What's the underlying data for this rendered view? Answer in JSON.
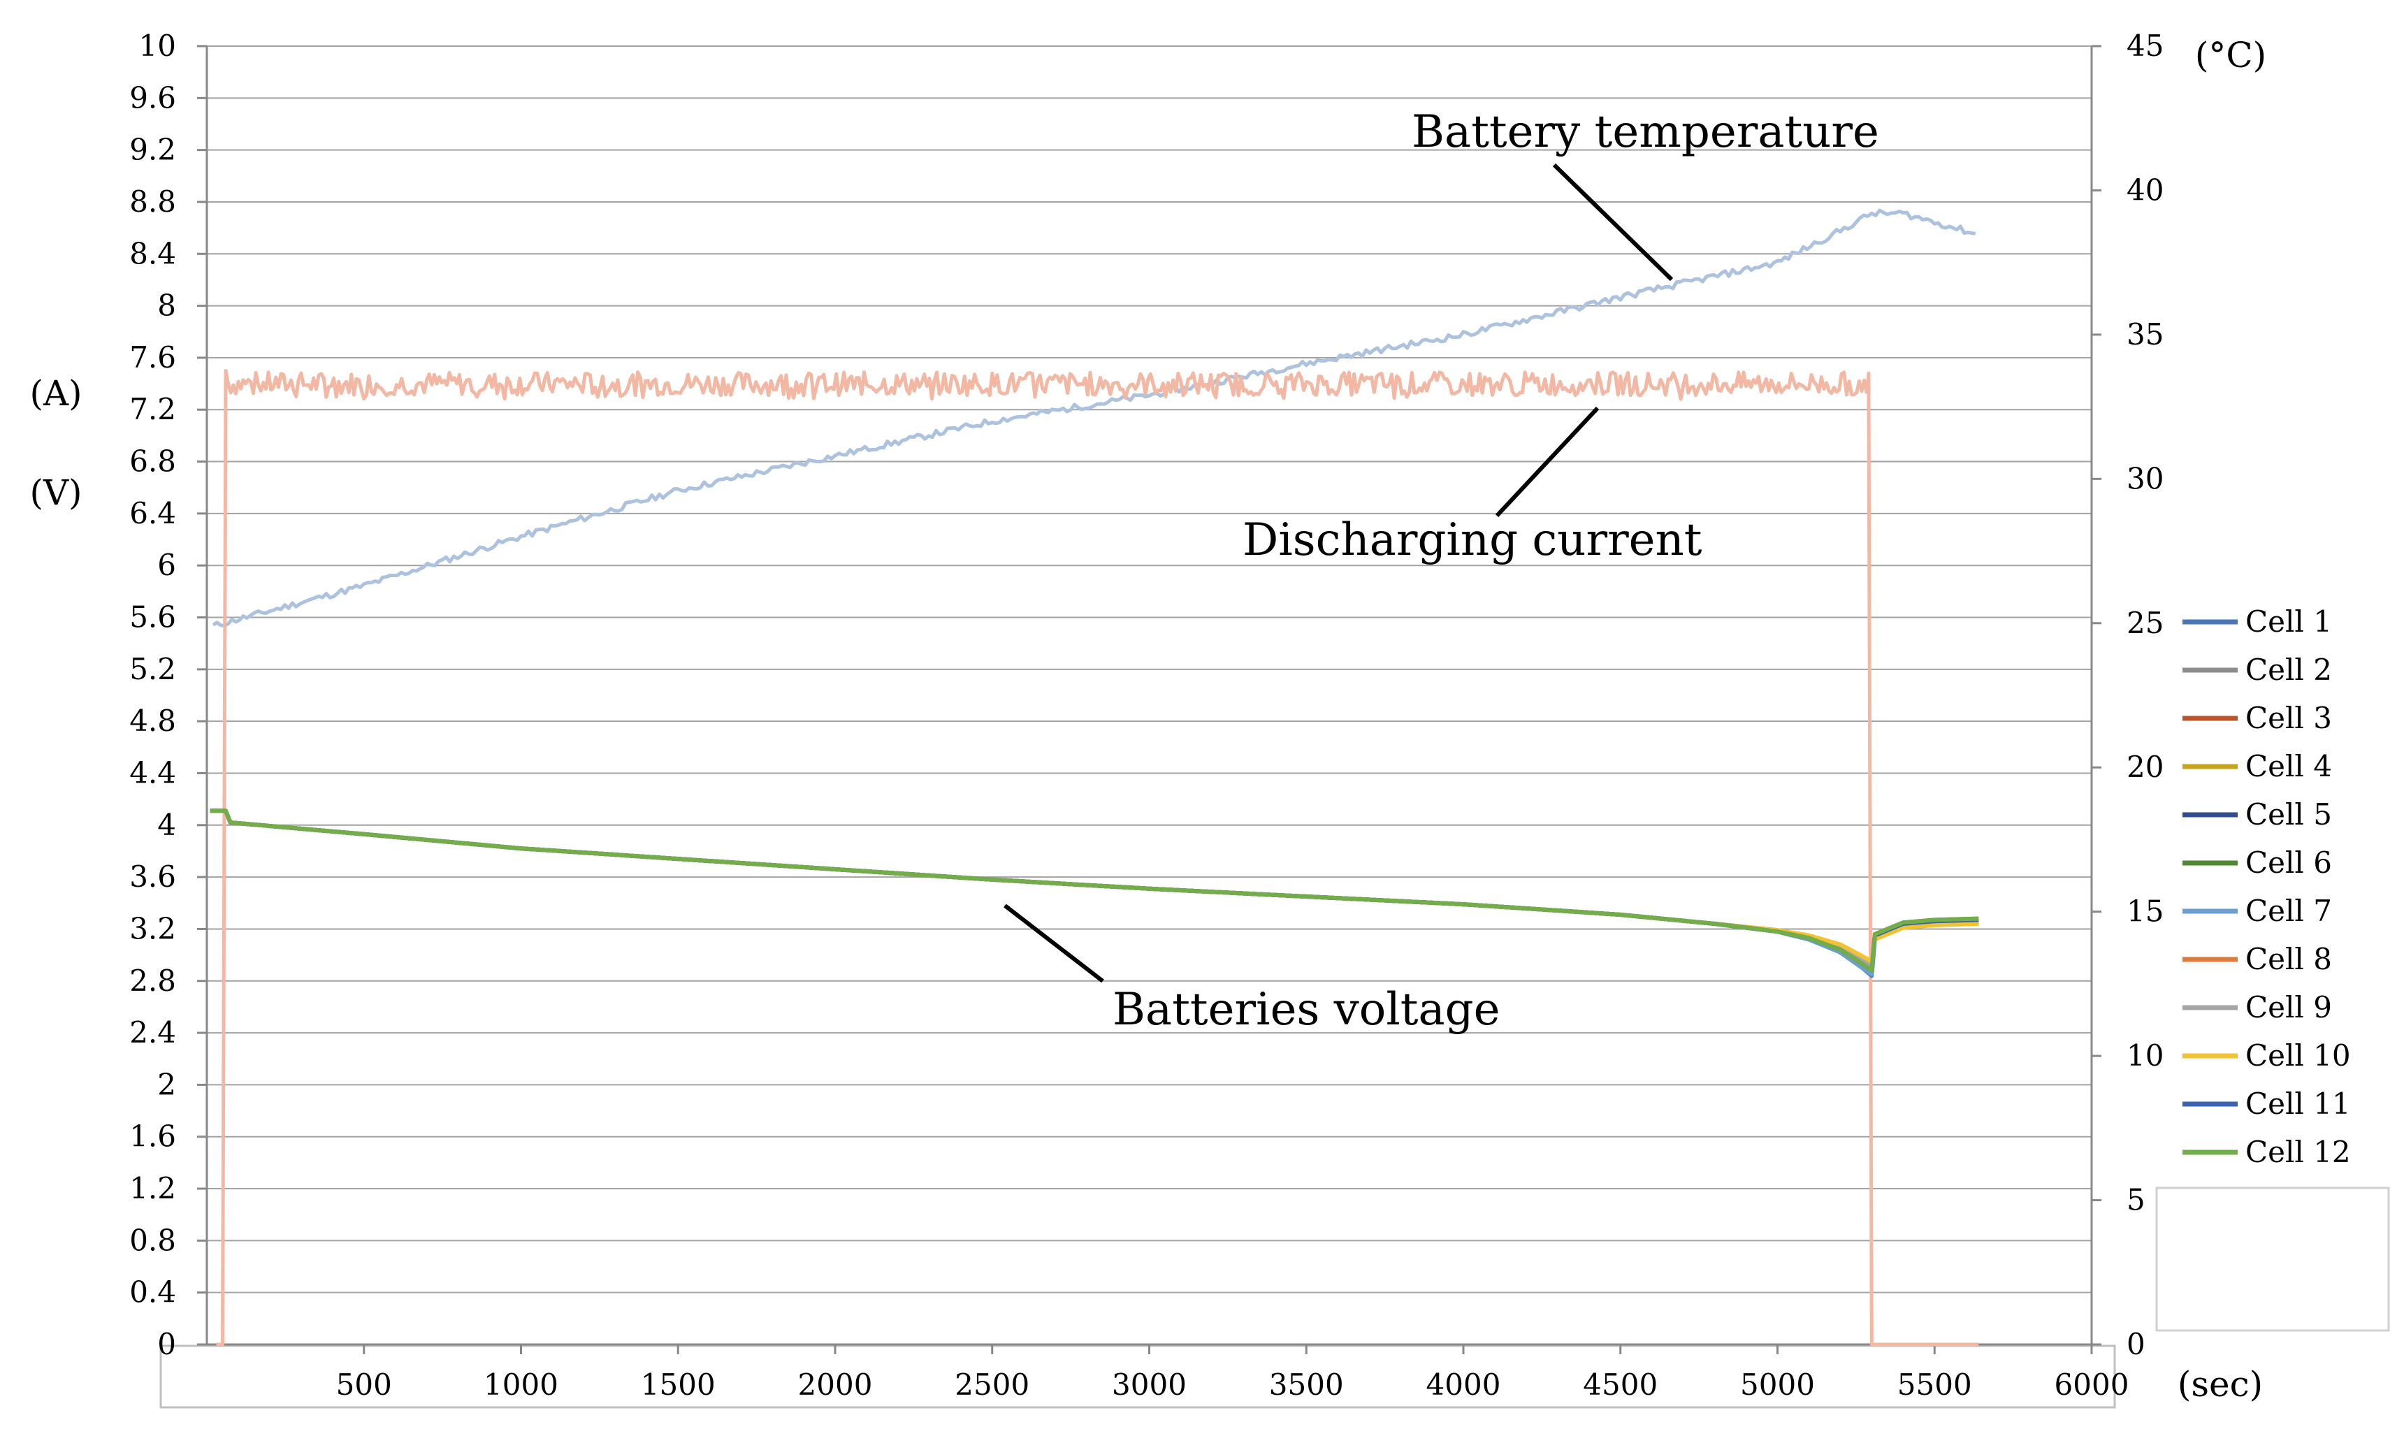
{
  "chart_data": {
    "type": "line",
    "x": {
      "unit": "(sec)",
      "range": [
        0,
        6000
      ],
      "ticks": [
        500,
        1000,
        1500,
        2000,
        2500,
        3000,
        3500,
        4000,
        4500,
        5000,
        5500,
        6000
      ]
    },
    "y_left": {
      "units": [
        "(A)",
        "(V)"
      ],
      "range": [
        0,
        10
      ],
      "ticks": [
        "0",
        "0.4",
        "0.8",
        "1.2",
        "1.6",
        "2",
        "2.4",
        "2.8",
        "3.2",
        "3.6",
        "4",
        "4.4",
        "4.8",
        "5.2",
        "5.6",
        "6",
        "6.4",
        "6.8",
        "7.2",
        "7.6",
        "8",
        "8.4",
        "8.8",
        "9.2",
        "9.6",
        "10"
      ]
    },
    "y_right": {
      "unit": "(°C)",
      "range": [
        0,
        45
      ],
      "ticks": [
        0,
        5,
        10,
        15,
        20,
        25,
        30,
        35,
        40,
        45
      ]
    },
    "grid": "horizontal",
    "annotations": {
      "temperature": "Battery temperature",
      "current": "Discharging current",
      "voltage": "Batteries voltage"
    },
    "temperature_series": {
      "name": "Battery temperature",
      "axis": "right",
      "color": "#adc2df",
      "points": [
        [
          20,
          24.9
        ],
        [
          500,
          26.3
        ],
        [
          1000,
          28.0
        ],
        [
          1500,
          29.6
        ],
        [
          2000,
          30.8
        ],
        [
          2500,
          32.0
        ],
        [
          3000,
          32.9
        ],
        [
          3500,
          34.0
        ],
        [
          4000,
          35.0
        ],
        [
          4500,
          36.3
        ],
        [
          5000,
          37.5
        ],
        [
          5200,
          38.6
        ],
        [
          5300,
          39.2
        ],
        [
          5400,
          39.2
        ],
        [
          5500,
          38.9
        ],
        [
          5630,
          38.5
        ]
      ]
    },
    "current_series": {
      "name": "Discharging current",
      "axis": "left",
      "color": "#f2b8a4",
      "points": [
        [
          30,
          0
        ],
        [
          50,
          0
        ],
        [
          60,
          7.5
        ],
        [
          5290,
          7.48
        ],
        [
          5300,
          0
        ],
        [
          5640,
          0
        ]
      ],
      "nominal": 7.4
    },
    "voltage_legend_position": "right",
    "series": [
      {
        "name": "Cell 1",
        "color": "#4a76b5",
        "points": [
          [
            10,
            4.11
          ],
          [
            60,
            4.11
          ],
          [
            75,
            4.02
          ],
          [
            500,
            3.93
          ],
          [
            1000,
            3.82
          ],
          [
            1500,
            3.74
          ],
          [
            2000,
            3.66
          ],
          [
            2500,
            3.58
          ],
          [
            3000,
            3.51
          ],
          [
            3500,
            3.45
          ],
          [
            4000,
            3.39
          ],
          [
            4500,
            3.31
          ],
          [
            4800,
            3.24
          ],
          [
            5000,
            3.18
          ],
          [
            5100,
            3.12
          ],
          [
            5200,
            3.02
          ],
          [
            5270,
            2.9
          ],
          [
            5300,
            2.84
          ],
          [
            5310,
            3.12
          ],
          [
            5400,
            3.22
          ],
          [
            5500,
            3.25
          ],
          [
            5640,
            3.26
          ]
        ]
      },
      {
        "name": "Cell 2",
        "color": "#8c8c8c",
        "points": [
          [
            10,
            4.11
          ],
          [
            60,
            4.11
          ],
          [
            75,
            4.02
          ],
          [
            500,
            3.93
          ],
          [
            1000,
            3.82
          ],
          [
            1500,
            3.74
          ],
          [
            2000,
            3.66
          ],
          [
            2500,
            3.58
          ],
          [
            3000,
            3.51
          ],
          [
            3500,
            3.45
          ],
          [
            4000,
            3.39
          ],
          [
            4500,
            3.31
          ],
          [
            4800,
            3.24
          ],
          [
            5000,
            3.19
          ],
          [
            5100,
            3.13
          ],
          [
            5200,
            3.04
          ],
          [
            5270,
            2.93
          ],
          [
            5300,
            2.88
          ],
          [
            5310,
            3.14
          ],
          [
            5400,
            3.23
          ],
          [
            5500,
            3.26
          ],
          [
            5640,
            3.27
          ]
        ]
      },
      {
        "name": "Cell 3",
        "color": "#b8552a",
        "points": [
          [
            10,
            4.11
          ],
          [
            60,
            4.11
          ],
          [
            75,
            4.02
          ],
          [
            500,
            3.93
          ],
          [
            1000,
            3.82
          ],
          [
            1500,
            3.74
          ],
          [
            2000,
            3.66
          ],
          [
            2500,
            3.58
          ],
          [
            3000,
            3.51
          ],
          [
            3500,
            3.45
          ],
          [
            4000,
            3.39
          ],
          [
            4500,
            3.31
          ],
          [
            4800,
            3.24
          ],
          [
            5000,
            3.19
          ],
          [
            5100,
            3.14
          ],
          [
            5200,
            3.06
          ],
          [
            5270,
            2.96
          ],
          [
            5300,
            2.91
          ],
          [
            5310,
            3.15
          ],
          [
            5400,
            3.23
          ],
          [
            5500,
            3.25
          ],
          [
            5640,
            3.26
          ]
        ]
      },
      {
        "name": "Cell 4",
        "color": "#c6a31b",
        "points": [
          [
            10,
            4.11
          ],
          [
            60,
            4.11
          ],
          [
            75,
            4.02
          ],
          [
            500,
            3.93
          ],
          [
            1000,
            3.82
          ],
          [
            1500,
            3.74
          ],
          [
            2000,
            3.66
          ],
          [
            2500,
            3.58
          ],
          [
            3000,
            3.51
          ],
          [
            3500,
            3.45
          ],
          [
            4000,
            3.39
          ],
          [
            4500,
            3.31
          ],
          [
            4800,
            3.24
          ],
          [
            5000,
            3.19
          ],
          [
            5100,
            3.15
          ],
          [
            5200,
            3.08
          ],
          [
            5270,
            2.99
          ],
          [
            5300,
            2.94
          ],
          [
            5310,
            3.13
          ],
          [
            5400,
            3.22
          ],
          [
            5500,
            3.24
          ],
          [
            5640,
            3.25
          ]
        ]
      },
      {
        "name": "Cell 5",
        "color": "#2e4c8e",
        "points": [
          [
            10,
            4.11
          ],
          [
            60,
            4.11
          ],
          [
            75,
            4.02
          ],
          [
            500,
            3.93
          ],
          [
            1000,
            3.82
          ],
          [
            1500,
            3.74
          ],
          [
            2000,
            3.66
          ],
          [
            2500,
            3.58
          ],
          [
            3000,
            3.51
          ],
          [
            3500,
            3.45
          ],
          [
            4000,
            3.39
          ],
          [
            4500,
            3.31
          ],
          [
            4800,
            3.24
          ],
          [
            5000,
            3.18
          ],
          [
            5100,
            3.13
          ],
          [
            5200,
            3.05
          ],
          [
            5270,
            2.94
          ],
          [
            5300,
            2.89
          ],
          [
            5310,
            3.15
          ],
          [
            5400,
            3.24
          ],
          [
            5500,
            3.26
          ],
          [
            5640,
            3.27
          ]
        ]
      },
      {
        "name": "Cell 6",
        "color": "#4f8a32",
        "points": [
          [
            10,
            4.11
          ],
          [
            60,
            4.11
          ],
          [
            75,
            4.02
          ],
          [
            500,
            3.93
          ],
          [
            1000,
            3.82
          ],
          [
            1500,
            3.74
          ],
          [
            2000,
            3.66
          ],
          [
            2500,
            3.58
          ],
          [
            3000,
            3.51
          ],
          [
            3500,
            3.45
          ],
          [
            4000,
            3.39
          ],
          [
            4500,
            3.31
          ],
          [
            4800,
            3.24
          ],
          [
            5000,
            3.18
          ],
          [
            5100,
            3.12
          ],
          [
            5200,
            3.03
          ],
          [
            5270,
            2.92
          ],
          [
            5300,
            2.87
          ],
          [
            5310,
            3.16
          ],
          [
            5400,
            3.25
          ],
          [
            5500,
            3.27
          ],
          [
            5640,
            3.28
          ]
        ]
      },
      {
        "name": "Cell 7",
        "color": "#6b9fd3",
        "points": [
          [
            10,
            4.11
          ],
          [
            60,
            4.11
          ],
          [
            75,
            4.02
          ],
          [
            500,
            3.93
          ],
          [
            1000,
            3.82
          ],
          [
            1500,
            3.74
          ],
          [
            2000,
            3.66
          ],
          [
            2500,
            3.58
          ],
          [
            3000,
            3.51
          ],
          [
            3500,
            3.45
          ],
          [
            4000,
            3.39
          ],
          [
            4500,
            3.31
          ],
          [
            4800,
            3.24
          ],
          [
            5000,
            3.18
          ],
          [
            5100,
            3.12
          ],
          [
            5200,
            3.02
          ],
          [
            5270,
            2.9
          ],
          [
            5300,
            2.85
          ],
          [
            5310,
            3.15
          ],
          [
            5400,
            3.24
          ],
          [
            5500,
            3.26
          ],
          [
            5640,
            3.27
          ]
        ]
      },
      {
        "name": "Cell 8",
        "color": "#e07a38",
        "points": [
          [
            10,
            4.11
          ],
          [
            60,
            4.11
          ],
          [
            75,
            4.02
          ],
          [
            500,
            3.93
          ],
          [
            1000,
            3.82
          ],
          [
            1500,
            3.74
          ],
          [
            2000,
            3.66
          ],
          [
            2500,
            3.58
          ],
          [
            3000,
            3.51
          ],
          [
            3500,
            3.45
          ],
          [
            4000,
            3.39
          ],
          [
            4500,
            3.31
          ],
          [
            4800,
            3.24
          ],
          [
            5000,
            3.19
          ],
          [
            5100,
            3.14
          ],
          [
            5200,
            3.07
          ],
          [
            5270,
            2.97
          ],
          [
            5300,
            2.92
          ],
          [
            5310,
            3.14
          ],
          [
            5400,
            3.23
          ],
          [
            5500,
            3.25
          ],
          [
            5640,
            3.26
          ]
        ]
      },
      {
        "name": "Cell 9",
        "color": "#a5a5a5",
        "points": [
          [
            10,
            4.11
          ],
          [
            60,
            4.11
          ],
          [
            75,
            4.02
          ],
          [
            500,
            3.93
          ],
          [
            1000,
            3.82
          ],
          [
            1500,
            3.74
          ],
          [
            2000,
            3.66
          ],
          [
            2500,
            3.58
          ],
          [
            3000,
            3.51
          ],
          [
            3500,
            3.45
          ],
          [
            4000,
            3.39
          ],
          [
            4500,
            3.31
          ],
          [
            4800,
            3.24
          ],
          [
            5000,
            3.19
          ],
          [
            5100,
            3.14
          ],
          [
            5200,
            3.06
          ],
          [
            5270,
            2.96
          ],
          [
            5300,
            2.91
          ],
          [
            5310,
            3.14
          ],
          [
            5400,
            3.23
          ],
          [
            5500,
            3.25
          ],
          [
            5640,
            3.26
          ]
        ]
      },
      {
        "name": "Cell 10",
        "color": "#f1c232",
        "points": [
          [
            10,
            4.11
          ],
          [
            60,
            4.11
          ],
          [
            75,
            4.02
          ],
          [
            500,
            3.93
          ],
          [
            1000,
            3.82
          ],
          [
            1500,
            3.74
          ],
          [
            2000,
            3.66
          ],
          [
            2500,
            3.58
          ],
          [
            3000,
            3.51
          ],
          [
            3500,
            3.45
          ],
          [
            4000,
            3.39
          ],
          [
            4500,
            3.31
          ],
          [
            4800,
            3.24
          ],
          [
            5000,
            3.19
          ],
          [
            5100,
            3.15
          ],
          [
            5200,
            3.08
          ],
          [
            5270,
            2.99
          ],
          [
            5300,
            2.95
          ],
          [
            5310,
            3.12
          ],
          [
            5400,
            3.21
          ],
          [
            5500,
            3.23
          ],
          [
            5640,
            3.24
          ]
        ]
      },
      {
        "name": "Cell 11",
        "color": "#3a64b0",
        "points": [
          [
            10,
            4.11
          ],
          [
            60,
            4.11
          ],
          [
            75,
            4.02
          ],
          [
            500,
            3.93
          ],
          [
            1000,
            3.82
          ],
          [
            1500,
            3.74
          ],
          [
            2000,
            3.66
          ],
          [
            2500,
            3.58
          ],
          [
            3000,
            3.51
          ],
          [
            3500,
            3.45
          ],
          [
            4000,
            3.39
          ],
          [
            4500,
            3.31
          ],
          [
            4800,
            3.24
          ],
          [
            5000,
            3.18
          ],
          [
            5100,
            3.13
          ],
          [
            5200,
            3.04
          ],
          [
            5270,
            2.93
          ],
          [
            5300,
            2.88
          ],
          [
            5310,
            3.15
          ],
          [
            5400,
            3.24
          ],
          [
            5500,
            3.26
          ],
          [
            5640,
            3.27
          ]
        ]
      },
      {
        "name": "Cell 12",
        "color": "#72ad4a",
        "points": [
          [
            10,
            4.11
          ],
          [
            60,
            4.11
          ],
          [
            75,
            4.02
          ],
          [
            500,
            3.93
          ],
          [
            1000,
            3.82
          ],
          [
            1500,
            3.74
          ],
          [
            2000,
            3.66
          ],
          [
            2500,
            3.58
          ],
          [
            3000,
            3.51
          ],
          [
            3500,
            3.45
          ],
          [
            4000,
            3.39
          ],
          [
            4500,
            3.31
          ],
          [
            4800,
            3.24
          ],
          [
            5000,
            3.18
          ],
          [
            5100,
            3.13
          ],
          [
            5200,
            3.04
          ],
          [
            5270,
            2.93
          ],
          [
            5300,
            2.88
          ],
          [
            5310,
            3.16
          ],
          [
            5400,
            3.25
          ],
          [
            5500,
            3.27
          ],
          [
            5640,
            3.28
          ]
        ]
      }
    ]
  }
}
